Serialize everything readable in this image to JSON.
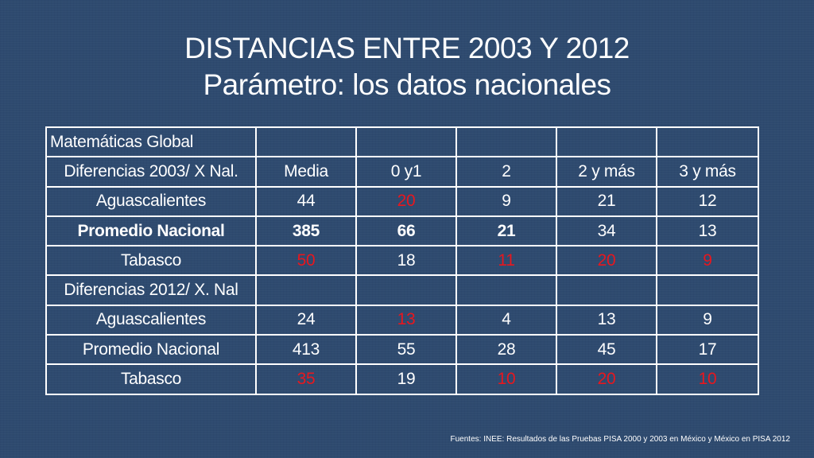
{
  "title": {
    "line1": "DISTANCIAS ENTRE 2003 Y 2012",
    "line2": "Parámetro: los datos nacionales"
  },
  "colors": {
    "background": "#2e4a6f",
    "text": "#ffffff",
    "highlight": "#e8171e"
  },
  "table": {
    "rows": [
      {
        "cells": [
          {
            "text": "Matemáticas Global",
            "align": "left"
          },
          {
            "text": ""
          },
          {
            "text": ""
          },
          {
            "text": ""
          },
          {
            "text": ""
          },
          {
            "text": ""
          }
        ]
      },
      {
        "cells": [
          {
            "text": "Diferencias 2003/ X Nal."
          },
          {
            "text": "Media"
          },
          {
            "text": "0 y1"
          },
          {
            "text": "2"
          },
          {
            "text": "2 y más"
          },
          {
            "text": "3 y más"
          }
        ]
      },
      {
        "cells": [
          {
            "text": "Aguascalientes"
          },
          {
            "text": "44"
          },
          {
            "text": "20",
            "red": true
          },
          {
            "text": "9"
          },
          {
            "text": "21"
          },
          {
            "text": "12"
          }
        ]
      },
      {
        "bold": true,
        "cells": [
          {
            "text": "Promedio Nacional"
          },
          {
            "text": "385"
          },
          {
            "text": "66"
          },
          {
            "text": "21"
          },
          {
            "text": "34",
            "normal": true
          },
          {
            "text": "13",
            "normal": true
          }
        ]
      },
      {
        "cells": [
          {
            "text": "Tabasco"
          },
          {
            "text": "50",
            "red": true
          },
          {
            "text": "18"
          },
          {
            "text": "11",
            "red": true
          },
          {
            "text": "20",
            "red": true
          },
          {
            "text": "9",
            "red": true
          }
        ]
      },
      {
        "cells": [
          {
            "text": "Diferencias 2012/ X. Nal"
          },
          {
            "text": ""
          },
          {
            "text": ""
          },
          {
            "text": ""
          },
          {
            "text": ""
          },
          {
            "text": ""
          }
        ]
      },
      {
        "cells": [
          {
            "text": "Aguascalientes"
          },
          {
            "text": "24"
          },
          {
            "text": "13",
            "red": true
          },
          {
            "text": "4"
          },
          {
            "text": "13"
          },
          {
            "text": "9"
          }
        ]
      },
      {
        "cells": [
          {
            "text": "Promedio Nacional"
          },
          {
            "text": "413"
          },
          {
            "text": "55"
          },
          {
            "text": "28"
          },
          {
            "text": "45"
          },
          {
            "text": "17"
          }
        ]
      },
      {
        "cells": [
          {
            "text": "Tabasco"
          },
          {
            "text": "35",
            "red": true
          },
          {
            "text": "19"
          },
          {
            "text": "10",
            "red": true
          },
          {
            "text": "20",
            "red": true
          },
          {
            "text": "10",
            "red": true
          }
        ]
      }
    ]
  },
  "footer": "Fuentes: INEE: Resultados de las Pruebas PISA 2000 y 2003 en México y México en PISA 2012"
}
